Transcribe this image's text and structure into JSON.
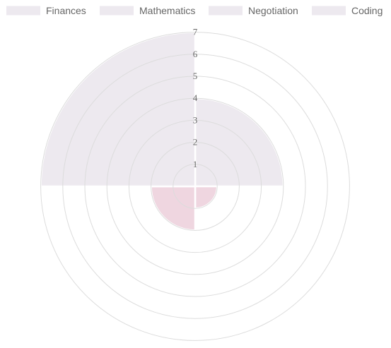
{
  "chart_data": {
    "type": "polarArea",
    "legend_position": "top",
    "categories": [
      "Finances",
      "Mathematics",
      "Negotiation",
      "Coding"
    ],
    "values": [
      4,
      1,
      2,
      7
    ],
    "segment_colors": [
      "#ede9ef",
      "#efd6e0",
      "#efd6e0",
      "#ede9ef"
    ],
    "legend_colors": [
      "#ede9ef",
      "#ede9ef",
      "#ede9ef",
      "#ede9ef"
    ],
    "tick_labels": [
      "1",
      "2",
      "3",
      "4",
      "5",
      "6",
      "7"
    ],
    "r_range": [
      0,
      7
    ],
    "grid": true,
    "grid_color": "#dcdcdc"
  }
}
